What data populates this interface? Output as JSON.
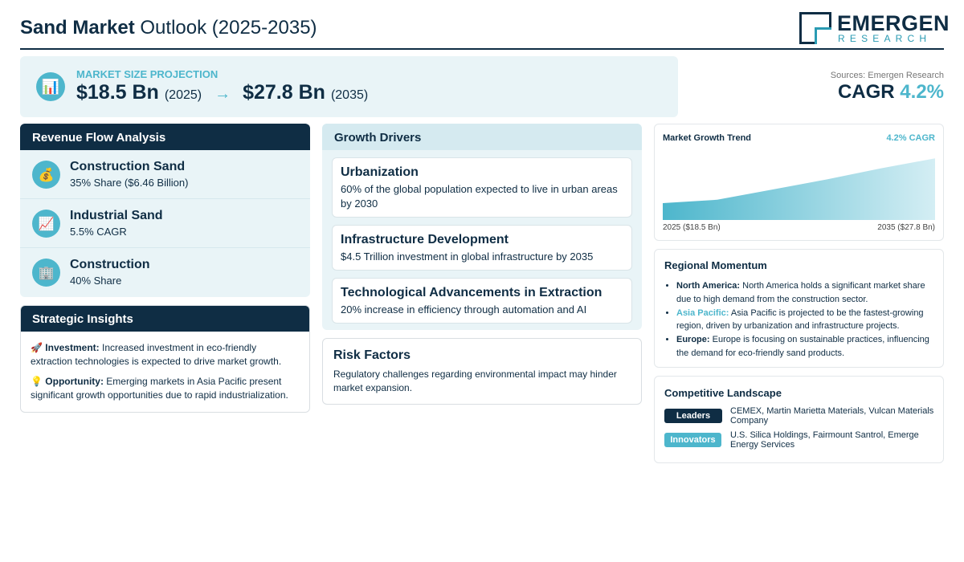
{
  "header": {
    "title_bold": "Sand Market",
    "title_rest": "Outlook (2025-2035)",
    "logo_word": "EMERGEN",
    "logo_sub": "RESEARCH"
  },
  "projection": {
    "icon": "bar-chart-icon",
    "label": "MARKET SIZE PROJECTION",
    "start_value": "$18.5 Bn",
    "start_year": "(2025)",
    "arrow": "→",
    "end_value": "$27.8 Bn",
    "end_year": "(2035)"
  },
  "sources": "Sources: Emergen Research",
  "cagr": {
    "label": "CAGR",
    "value": "4.2%"
  },
  "revenue": {
    "title": "Revenue Flow Analysis",
    "items": [
      {
        "icon": "money-bag-icon",
        "title": "Construction Sand",
        "sub": "35% Share ($6.46 Billion)"
      },
      {
        "icon": "trend-up-icon",
        "title": "Industrial Sand",
        "sub": "5.5% CAGR"
      },
      {
        "icon": "building-icon",
        "title": "Construction",
        "sub": "40% Share"
      }
    ]
  },
  "insights": {
    "title": "Strategic Insights",
    "items": [
      {
        "icon": "rocket-icon",
        "label": "Investment:",
        "text": "Increased investment in eco-friendly extraction technologies is expected to drive market growth."
      },
      {
        "icon": "lightbulb-icon",
        "label": "Opportunity:",
        "text": "Emerging markets in Asia Pacific present significant growth opportunities due to rapid industrialization."
      }
    ]
  },
  "drivers": {
    "title": "Growth Drivers",
    "items": [
      {
        "title": "Urbanization",
        "text": "60% of the global population expected to live in urban areas by 2030"
      },
      {
        "title": "Infrastructure Development",
        "text": "$4.5 Trillion investment in global infrastructure by 2035"
      },
      {
        "title": "Technological Advancements in Extraction",
        "text": "20% increase in efficiency through automation and AI"
      }
    ]
  },
  "risk": {
    "title": "Risk Factors",
    "text": "Regulatory challenges regarding environmental impact may hinder market expansion."
  },
  "chart_data": {
    "type": "area",
    "title": "Market Growth Trend",
    "annotation": "4.2% CAGR",
    "x": [
      2025,
      2027,
      2029,
      2031,
      2033,
      2035
    ],
    "values": [
      18.5,
      19.2,
      21.3,
      23.4,
      25.7,
      27.8
    ],
    "x_start_label": "2025 ($18.5 Bn)",
    "x_end_label": "2035 ($27.8 Bn)",
    "ylim": [
      15,
      29
    ],
    "grid": false,
    "color": "#4db6cc"
  },
  "regional": {
    "title": "Regional Momentum",
    "items": [
      {
        "name": "North America:",
        "accent": false,
        "text": "North America holds a significant market share due to high demand from the construction sector."
      },
      {
        "name": "Asia Pacific:",
        "accent": true,
        "text": "Asia Pacific is projected to be the fastest-growing region, driven by urbanization and infrastructure projects."
      },
      {
        "name": "Europe:",
        "accent": false,
        "text": "Europe is focusing on sustainable practices, influencing the demand for eco-friendly sand products."
      }
    ]
  },
  "competitive": {
    "title": "Competitive Landscape",
    "leaders_label": "Leaders",
    "leaders": "CEMEX, Martin Marietta Materials, Vulcan Materials Company",
    "innovators_label": "Innovators",
    "innovators": "U.S. Silica Holdings, Fairmount Santrol, Emerge Energy Services"
  },
  "colors": {
    "navy": "#0f2d44",
    "teal": "#4db6cc",
    "panel": "#e9f4f7"
  }
}
